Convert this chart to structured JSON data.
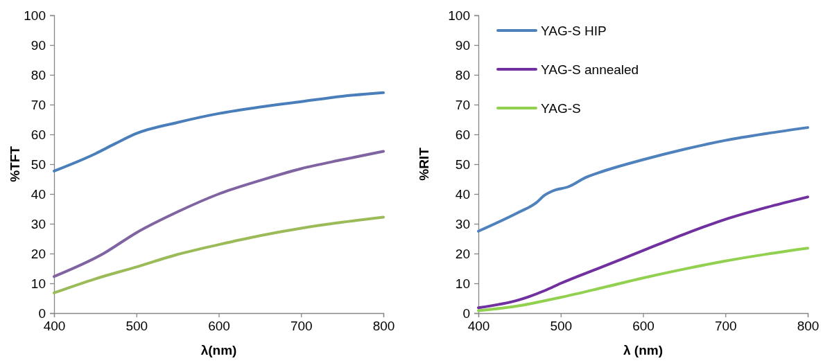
{
  "chart_data": [
    {
      "type": "line",
      "xlabel": "λ(nm)",
      "ylabel": "%TFT",
      "xlim": [
        400,
        800
      ],
      "ylim": [
        0,
        100
      ],
      "xticks": [
        400,
        500,
        600,
        700,
        800
      ],
      "yticks": [
        0,
        10,
        20,
        30,
        40,
        50,
        60,
        70,
        80,
        90,
        100
      ],
      "grid": false,
      "legend": false,
      "line_style": "solid",
      "marker": "none",
      "series": [
        {
          "color": "#4a7ebb",
          "x": [
            400,
            450,
            475,
            500,
            550,
            600,
            650,
            700,
            750,
            800
          ],
          "values": [
            47.7,
            53.5,
            57,
            60.3,
            64,
            67,
            69.2,
            71,
            72.8,
            74
          ]
        },
        {
          "color": "#8064a2",
          "x": [
            400,
            460,
            500,
            550,
            600,
            650,
            700,
            750,
            800
          ],
          "values": [
            12.3,
            20,
            27,
            34,
            40,
            44.5,
            48.5,
            51.5,
            54.3
          ]
        },
        {
          "color": "#9bbb59",
          "x": [
            400,
            450,
            500,
            550,
            600,
            650,
            700,
            750,
            800
          ],
          "values": [
            6.8,
            11.5,
            15.5,
            19.7,
            23,
            26,
            28.5,
            30.5,
            32.2
          ]
        }
      ]
    },
    {
      "type": "line",
      "xlabel": "λ (nm)",
      "ylabel": "%RIT",
      "xlim": [
        400,
        800
      ],
      "ylim": [
        0,
        100
      ],
      "xticks": [
        400,
        500,
        600,
        700,
        800
      ],
      "yticks": [
        0,
        10,
        20,
        30,
        40,
        50,
        60,
        70,
        80,
        90,
        100
      ],
      "grid": false,
      "legend": "top left",
      "line_style": "solid",
      "marker": "none",
      "series": [
        {
          "name": "YAG-S HIP",
          "color": "#4f81bd",
          "x": [
            400,
            450,
            470,
            480,
            490,
            510,
            530,
            550,
            600,
            650,
            700,
            750,
            800
          ],
          "values": [
            27.5,
            34,
            37,
            39.5,
            41,
            42.5,
            45.5,
            47.5,
            51.5,
            55,
            58,
            60.3,
            62.3
          ]
        },
        {
          "name": "YAG-S annealed",
          "color": "#7030a0",
          "x": [
            400,
            450,
            480,
            500,
            550,
            600,
            650,
            700,
            750,
            800
          ],
          "values": [
            1.8,
            4.5,
            7.5,
            10,
            15.5,
            21,
            26.5,
            31.5,
            35.5,
            39
          ]
        },
        {
          "name": "YAG-S",
          "color": "#92d050",
          "x": [
            400,
            450,
            500,
            550,
            600,
            650,
            700,
            750,
            800
          ],
          "values": [
            0.8,
            2.5,
            5.3,
            8.5,
            11.8,
            14.8,
            17.5,
            19.8,
            21.8
          ]
        }
      ]
    }
  ]
}
